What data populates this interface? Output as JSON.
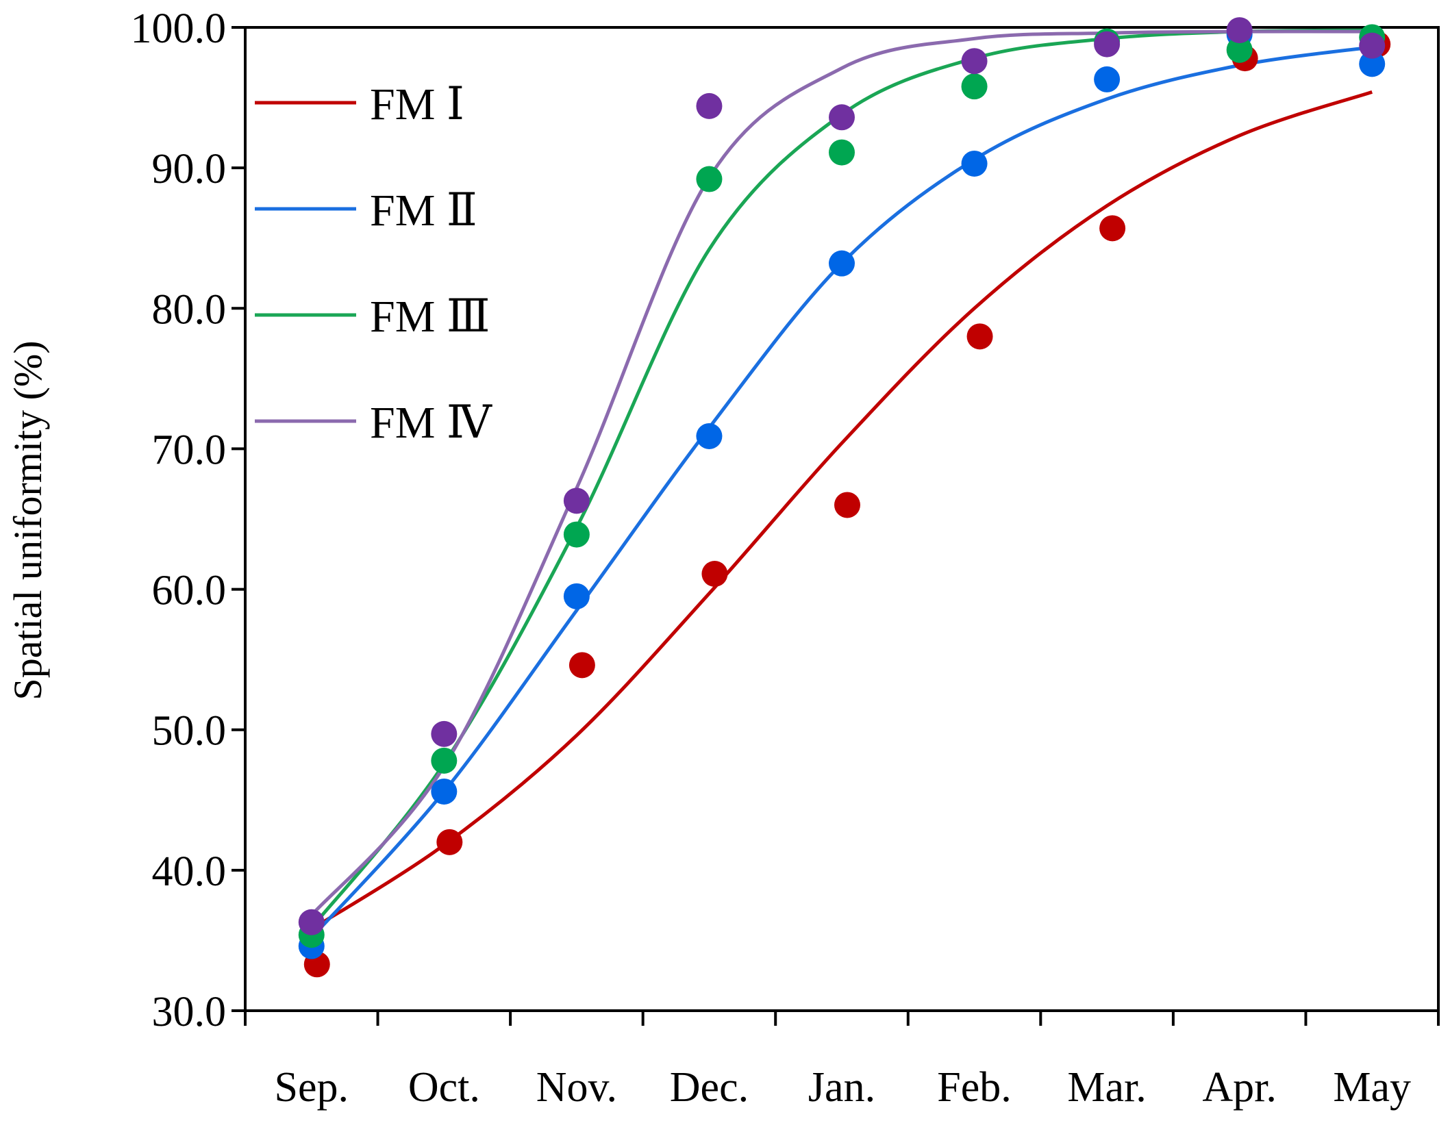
{
  "chart_data": {
    "type": "scatter",
    "title": "",
    "xlabel": "",
    "ylabel": "Spatial uniformity (%)",
    "ylim": [
      30,
      100
    ],
    "yticks": [
      "30.0",
      "40.0",
      "50.0",
      "60.0",
      "70.0",
      "80.0",
      "90.0",
      "100.0"
    ],
    "categories": [
      "Sep.",
      "Oct.",
      "Nov.",
      "Dec.",
      "Jan.",
      "Feb.",
      "Mar.",
      "Apr.",
      "May"
    ],
    "legend_position": "top-left",
    "series": [
      {
        "name": "FM Ⅰ",
        "color": "#c00000",
        "points": [
          33.3,
          42.0,
          54.6,
          61.1,
          66.0,
          78.0,
          85.7,
          97.8,
          98.8
        ],
        "fit": [
          35.8,
          41.8,
          49.6,
          59.7,
          70.4,
          80.0,
          87.3,
          92.3,
          95.4
        ]
      },
      {
        "name": "FM Ⅱ",
        "color": "#0066e6",
        "points": [
          34.6,
          45.6,
          59.5,
          70.9,
          83.2,
          90.3,
          96.3,
          99.5,
          97.4
        ],
        "fit": [
          35.2,
          45.6,
          58.5,
          71.5,
          83.2,
          90.6,
          94.9,
          97.3,
          98.6
        ]
      },
      {
        "name": "FM Ⅲ",
        "color": "#00a651",
        "points": [
          35.4,
          47.8,
          63.9,
          89.2,
          91.1,
          95.8,
          99.0,
          98.4,
          99.3
        ],
        "fit": [
          35.9,
          47.6,
          64.4,
          84.2,
          93.8,
          97.8,
          99.2,
          99.7,
          99.8
        ]
      },
      {
        "name": "FM Ⅳ",
        "color": "#7030a0",
        "points": [
          36.3,
          49.7,
          66.3,
          94.4,
          93.6,
          97.6,
          98.8,
          99.8,
          98.7
        ],
        "fit": [
          36.8,
          47.4,
          67.2,
          89.3,
          97.1,
          99.2,
          99.6,
          99.7,
          99.7
        ]
      }
    ]
  },
  "colors": {
    "fit_FM1": "#c00000",
    "fit_FM2": "#1a6fe0",
    "fit_FM3": "#1aa655",
    "fit_FM4": "#8b6aae"
  }
}
